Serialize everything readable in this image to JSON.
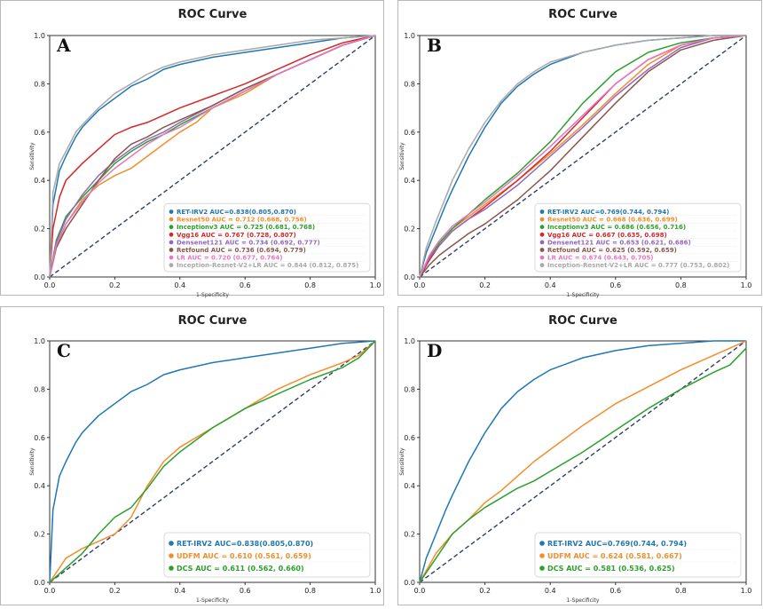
{
  "figure": {
    "background": "#ffffff",
    "panel_border": "#b8b8b8",
    "diagonal_color": "#2e3e66"
  },
  "chart_data": [
    {
      "type": "line",
      "panel_label": "A",
      "title": "ROC Curve",
      "xlabel": "1-Specificity",
      "ylabel": "Sensitivity",
      "xlim": [
        0,
        1
      ],
      "ylim": [
        0,
        1
      ],
      "xticks": [
        "0.0",
        "0.2",
        "0.4",
        "0.6",
        "0.8",
        "1.0"
      ],
      "yticks": [
        "0.0",
        "0.2",
        "0.4",
        "0.6",
        "0.8",
        "1.0"
      ],
      "reference_line": "diagonal",
      "legend_position": "lower-right",
      "legend_font_size": "small",
      "series": [
        {
          "name": "RET-IRV2 AUC=0.838(0.805,0.870)",
          "color": "#1f77b4",
          "x": [
            0,
            0.01,
            0.03,
            0.05,
            0.08,
            0.1,
            0.15,
            0.2,
            0.25,
            0.3,
            0.35,
            0.4,
            0.5,
            0.6,
            0.7,
            0.8,
            0.9,
            1.0
          ],
          "y": [
            0,
            0.3,
            0.44,
            0.5,
            0.58,
            0.62,
            0.69,
            0.74,
            0.79,
            0.82,
            0.86,
            0.88,
            0.91,
            0.93,
            0.95,
            0.97,
            0.99,
            1.0
          ]
        },
        {
          "name": "Resnet50 AUC = 0.712 (0.668, 0.756)",
          "color": "#f28e2b",
          "x": [
            0,
            0.02,
            0.05,
            0.1,
            0.15,
            0.2,
            0.25,
            0.3,
            0.35,
            0.4,
            0.45,
            0.5,
            0.6,
            0.7,
            0.8,
            0.9,
            1.0
          ],
          "y": [
            0,
            0.12,
            0.22,
            0.32,
            0.38,
            0.42,
            0.45,
            0.5,
            0.55,
            0.6,
            0.64,
            0.7,
            0.76,
            0.84,
            0.9,
            0.96,
            1.0
          ]
        },
        {
          "name": "Inceptionv3 AUC = 0.725 (0.681, 0.768)",
          "color": "#2ca02c",
          "x": [
            0,
            0.02,
            0.05,
            0.1,
            0.15,
            0.2,
            0.25,
            0.3,
            0.35,
            0.4,
            0.5,
            0.6,
            0.7,
            0.8,
            0.9,
            1.0
          ],
          "y": [
            0,
            0.15,
            0.25,
            0.33,
            0.4,
            0.47,
            0.52,
            0.56,
            0.59,
            0.63,
            0.7,
            0.77,
            0.84,
            0.9,
            0.96,
            1.0
          ]
        },
        {
          "name": "Vgg16 AUC = 0.767 (0.728, 0.807)",
          "color": "#d62728",
          "x": [
            0,
            0.01,
            0.03,
            0.05,
            0.1,
            0.15,
            0.2,
            0.25,
            0.3,
            0.35,
            0.4,
            0.5,
            0.6,
            0.7,
            0.8,
            0.9,
            1.0
          ],
          "y": [
            0,
            0.2,
            0.33,
            0.4,
            0.47,
            0.53,
            0.59,
            0.62,
            0.64,
            0.67,
            0.7,
            0.75,
            0.8,
            0.86,
            0.92,
            0.97,
            1.0
          ]
        },
        {
          "name": "Densenet121 AUC = 0.734 (0.692, 0.777)",
          "color": "#9467bd",
          "x": [
            0,
            0.02,
            0.05,
            0.1,
            0.15,
            0.2,
            0.25,
            0.3,
            0.35,
            0.4,
            0.5,
            0.6,
            0.7,
            0.8,
            0.9,
            1.0
          ],
          "y": [
            0,
            0.14,
            0.24,
            0.34,
            0.42,
            0.48,
            0.53,
            0.57,
            0.6,
            0.64,
            0.71,
            0.78,
            0.84,
            0.9,
            0.96,
            1.0
          ]
        },
        {
          "name": "Retfound AUC = 0.736 (0.694, 0.779)",
          "color": "#8c564b",
          "x": [
            0,
            0.02,
            0.05,
            0.1,
            0.15,
            0.2,
            0.25,
            0.3,
            0.35,
            0.4,
            0.5,
            0.6,
            0.7,
            0.8,
            0.9,
            1.0
          ],
          "y": [
            0,
            0.12,
            0.2,
            0.3,
            0.4,
            0.49,
            0.55,
            0.58,
            0.62,
            0.65,
            0.71,
            0.78,
            0.84,
            0.9,
            0.96,
            1.0
          ]
        },
        {
          "name": "LR AUC = 0.720 (0.677, 0.764)",
          "color": "#e377c2",
          "x": [
            0,
            0.02,
            0.05,
            0.1,
            0.15,
            0.2,
            0.25,
            0.3,
            0.35,
            0.4,
            0.5,
            0.6,
            0.7,
            0.8,
            0.9,
            1.0
          ],
          "y": [
            0,
            0.13,
            0.22,
            0.31,
            0.39,
            0.45,
            0.5,
            0.55,
            0.59,
            0.62,
            0.7,
            0.77,
            0.84,
            0.9,
            0.96,
            1.0
          ]
        },
        {
          "name": "Inception-Resnet-V2+LR AUC = 0.844 (0.812, 0.875)",
          "color": "#a9a9a9",
          "x": [
            0,
            0.01,
            0.03,
            0.05,
            0.08,
            0.1,
            0.15,
            0.2,
            0.25,
            0.3,
            0.35,
            0.4,
            0.5,
            0.6,
            0.7,
            0.8,
            0.9,
            1.0
          ],
          "y": [
            0,
            0.35,
            0.47,
            0.52,
            0.6,
            0.63,
            0.7,
            0.76,
            0.8,
            0.84,
            0.87,
            0.89,
            0.92,
            0.94,
            0.96,
            0.98,
            0.99,
            1.0
          ]
        }
      ]
    },
    {
      "type": "line",
      "panel_label": "B",
      "title": "ROC Curve",
      "xlabel": "1-Specificity",
      "ylabel": "Sensitivity",
      "xlim": [
        0,
        1
      ],
      "ylim": [
        0,
        1
      ],
      "xticks": [
        "0.0",
        "0.2",
        "0.4",
        "0.6",
        "0.8",
        "1.0"
      ],
      "yticks": [
        "0.0",
        "0.2",
        "0.4",
        "0.6",
        "0.8",
        "1.0"
      ],
      "reference_line": "diagonal",
      "legend_position": "lower-right",
      "legend_font_size": "small",
      "series": [
        {
          "name": "RET-IRV2 AUC=0.769(0.744, 0.794)",
          "color": "#1f77b4",
          "x": [
            0,
            0.02,
            0.05,
            0.08,
            0.1,
            0.15,
            0.2,
            0.25,
            0.3,
            0.35,
            0.4,
            0.5,
            0.6,
            0.7,
            0.8,
            0.9,
            1.0
          ],
          "y": [
            0,
            0.1,
            0.2,
            0.3,
            0.36,
            0.5,
            0.62,
            0.72,
            0.79,
            0.84,
            0.88,
            0.93,
            0.96,
            0.98,
            0.99,
            1.0,
            1.0
          ]
        },
        {
          "name": "Resnet50 AUC = 0.668 (0.636, 0.699)",
          "color": "#f28e2b",
          "x": [
            0,
            0.03,
            0.06,
            0.1,
            0.15,
            0.2,
            0.3,
            0.4,
            0.5,
            0.6,
            0.7,
            0.8,
            0.9,
            1.0
          ],
          "y": [
            0,
            0.08,
            0.14,
            0.2,
            0.25,
            0.3,
            0.4,
            0.51,
            0.63,
            0.76,
            0.88,
            0.96,
            0.99,
            1.0
          ]
        },
        {
          "name": "Inceptionv3 AUC = 0.686 (0.656, 0.716)",
          "color": "#2ca02c",
          "x": [
            0,
            0.03,
            0.06,
            0.1,
            0.15,
            0.2,
            0.3,
            0.4,
            0.5,
            0.6,
            0.7,
            0.8,
            0.9,
            1.0
          ],
          "y": [
            0,
            0.08,
            0.14,
            0.2,
            0.26,
            0.32,
            0.43,
            0.56,
            0.72,
            0.85,
            0.93,
            0.97,
            0.99,
            1.0
          ]
        },
        {
          "name": "Vgg16 AUC = 0.667 (0.635, 0.698)",
          "color": "#d62728",
          "x": [
            0,
            0.03,
            0.06,
            0.1,
            0.15,
            0.2,
            0.3,
            0.4,
            0.5,
            0.6,
            0.7,
            0.8,
            0.9,
            1.0
          ],
          "y": [
            0,
            0.07,
            0.13,
            0.19,
            0.24,
            0.29,
            0.4,
            0.52,
            0.66,
            0.8,
            0.9,
            0.96,
            0.99,
            1.0
          ]
        },
        {
          "name": "Densenet121 AUC = 0.653 (0.621, 0.686)",
          "color": "#9467bd",
          "x": [
            0,
            0.03,
            0.06,
            0.1,
            0.15,
            0.2,
            0.3,
            0.4,
            0.5,
            0.6,
            0.7,
            0.8,
            0.9,
            1.0
          ],
          "y": [
            0,
            0.08,
            0.13,
            0.19,
            0.24,
            0.28,
            0.38,
            0.5,
            0.62,
            0.75,
            0.86,
            0.95,
            0.99,
            1.0
          ]
        },
        {
          "name": "Retfound AUC = 0.625 (0.592, 0.659)",
          "color": "#8c564b",
          "x": [
            0,
            0.03,
            0.06,
            0.1,
            0.15,
            0.2,
            0.3,
            0.4,
            0.5,
            0.6,
            0.7,
            0.8,
            0.9,
            1.0
          ],
          "y": [
            0,
            0.05,
            0.09,
            0.13,
            0.18,
            0.22,
            0.32,
            0.44,
            0.58,
            0.72,
            0.85,
            0.94,
            0.98,
            1.0
          ]
        },
        {
          "name": "LR AUC = 0.674 (0.643, 0.705)",
          "color": "#e377c2",
          "x": [
            0,
            0.03,
            0.06,
            0.1,
            0.15,
            0.2,
            0.3,
            0.4,
            0.5,
            0.6,
            0.7,
            0.8,
            0.9,
            1.0
          ],
          "y": [
            0,
            0.09,
            0.15,
            0.21,
            0.26,
            0.31,
            0.42,
            0.54,
            0.67,
            0.8,
            0.9,
            0.96,
            0.99,
            1.0
          ]
        },
        {
          "name": "Inception-Resnet-V2+LR AUC = 0.777 (0.753, 0.802)",
          "color": "#a9a9a9",
          "x": [
            0,
            0.02,
            0.05,
            0.08,
            0.1,
            0.15,
            0.2,
            0.25,
            0.3,
            0.35,
            0.4,
            0.5,
            0.6,
            0.7,
            0.8,
            0.9,
            1.0
          ],
          "y": [
            0,
            0.12,
            0.23,
            0.33,
            0.4,
            0.53,
            0.64,
            0.73,
            0.8,
            0.85,
            0.89,
            0.93,
            0.96,
            0.98,
            0.99,
            1.0,
            1.0
          ]
        }
      ]
    },
    {
      "type": "line",
      "panel_label": "C",
      "title": "ROC Curve",
      "xlabel": "1-Specificity",
      "ylabel": "Sensitivity",
      "xlim": [
        0,
        1
      ],
      "ylim": [
        0,
        1
      ],
      "xticks": [
        "0.0",
        "0.2",
        "0.4",
        "0.6",
        "0.8",
        "1.0"
      ],
      "yticks": [
        "0.0",
        "0.2",
        "0.4",
        "0.6",
        "0.8",
        "1.0"
      ],
      "reference_line": "diagonal",
      "legend_position": "lower-right",
      "legend_font_size": "large",
      "series": [
        {
          "name": "RET-IRV2 AUC=0.838(0.805,0.870)",
          "color": "#1f77b4",
          "x": [
            0,
            0.01,
            0.03,
            0.05,
            0.08,
            0.1,
            0.15,
            0.2,
            0.25,
            0.3,
            0.35,
            0.4,
            0.5,
            0.6,
            0.7,
            0.8,
            0.9,
            1.0
          ],
          "y": [
            0,
            0.3,
            0.44,
            0.5,
            0.58,
            0.62,
            0.69,
            0.74,
            0.79,
            0.82,
            0.86,
            0.88,
            0.91,
            0.93,
            0.95,
            0.97,
            0.99,
            1.0
          ]
        },
        {
          "name": "UDFM AUC = 0.610 (0.561, 0.659)",
          "color": "#f28e2b",
          "x": [
            0,
            0.05,
            0.1,
            0.15,
            0.2,
            0.25,
            0.3,
            0.35,
            0.4,
            0.5,
            0.6,
            0.7,
            0.8,
            0.9,
            0.95,
            1.0
          ],
          "y": [
            0,
            0.1,
            0.14,
            0.17,
            0.2,
            0.27,
            0.4,
            0.5,
            0.56,
            0.64,
            0.72,
            0.8,
            0.86,
            0.91,
            0.94,
            1.0
          ]
        },
        {
          "name": "DCS AUC = 0.611 (0.562, 0.660)",
          "color": "#2ca02c",
          "x": [
            0,
            0.05,
            0.1,
            0.15,
            0.2,
            0.25,
            0.3,
            0.35,
            0.4,
            0.5,
            0.6,
            0.7,
            0.8,
            0.9,
            0.95,
            1.0
          ],
          "y": [
            0,
            0.06,
            0.12,
            0.2,
            0.27,
            0.31,
            0.39,
            0.48,
            0.54,
            0.64,
            0.72,
            0.78,
            0.84,
            0.89,
            0.93,
            1.0
          ]
        }
      ]
    },
    {
      "type": "line",
      "panel_label": "D",
      "title": "ROC Curve",
      "xlabel": "1-Specificity",
      "ylabel": "Sensitivity",
      "xlim": [
        0,
        1
      ],
      "ylim": [
        0,
        1
      ],
      "xticks": [
        "0.0",
        "0.2",
        "0.4",
        "0.6",
        "0.8",
        "1.0"
      ],
      "yticks": [
        "0.0",
        "0.2",
        "0.4",
        "0.6",
        "0.8",
        "1.0"
      ],
      "reference_line": "diagonal",
      "legend_position": "lower-right",
      "legend_font_size": "large",
      "series": [
        {
          "name": "RET-IRV2  AUC=0.769(0.744, 0.794)",
          "color": "#1f77b4",
          "x": [
            0,
            0.02,
            0.05,
            0.08,
            0.1,
            0.15,
            0.2,
            0.25,
            0.3,
            0.35,
            0.4,
            0.5,
            0.6,
            0.7,
            0.8,
            0.9,
            1.0
          ],
          "y": [
            0,
            0.1,
            0.2,
            0.3,
            0.36,
            0.5,
            0.62,
            0.72,
            0.79,
            0.84,
            0.88,
            0.93,
            0.96,
            0.98,
            0.99,
            1.0,
            1.0
          ]
        },
        {
          "name": "UDFM AUC = 0.624 (0.581, 0.667)",
          "color": "#f28e2b",
          "x": [
            0,
            0.05,
            0.1,
            0.15,
            0.2,
            0.25,
            0.3,
            0.35,
            0.4,
            0.5,
            0.6,
            0.7,
            0.8,
            0.9,
            0.95,
            1.0
          ],
          "y": [
            0,
            0.12,
            0.2,
            0.26,
            0.33,
            0.38,
            0.44,
            0.5,
            0.55,
            0.65,
            0.74,
            0.81,
            0.88,
            0.94,
            0.97,
            1.0
          ]
        },
        {
          "name": "DCS AUC = 0.581 (0.536, 0.625)",
          "color": "#2ca02c",
          "x": [
            0,
            0.05,
            0.1,
            0.15,
            0.2,
            0.25,
            0.3,
            0.35,
            0.4,
            0.5,
            0.6,
            0.7,
            0.8,
            0.9,
            0.95,
            1.0
          ],
          "y": [
            0,
            0.1,
            0.2,
            0.26,
            0.31,
            0.35,
            0.39,
            0.42,
            0.46,
            0.54,
            0.63,
            0.72,
            0.8,
            0.87,
            0.9,
            0.97
          ]
        }
      ]
    }
  ]
}
